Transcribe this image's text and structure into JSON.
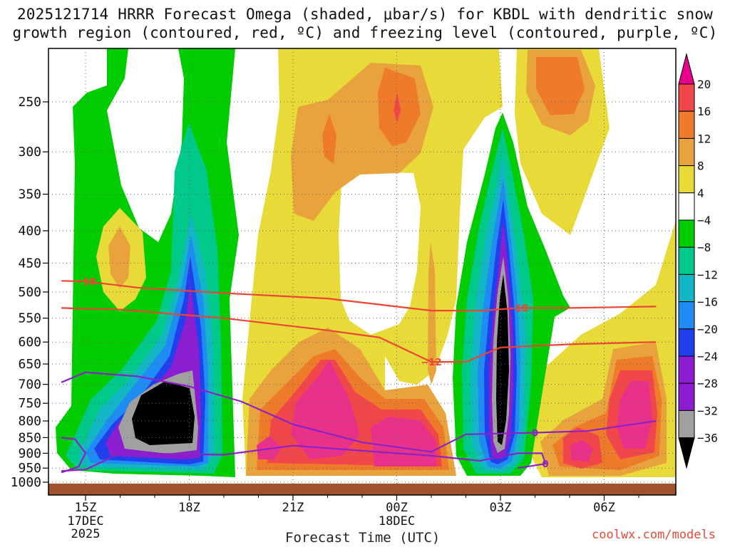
{
  "title_line1": "2025121714 HRRR Forecast Omega (shaded, μbar/s) for KBDL with dendritic snow",
  "title_line2": "growth region (contoured, red, ºC) and freezing level (contoured, purple, ºC)",
  "watermark": "coolwx.com/models",
  "chart_data": {
    "type": "heatmap",
    "xlabel": "Forecast Time (UTC)",
    "ylabel": "",
    "x_ticks": [
      {
        "label": "15Z",
        "sub": [
          "17DEC",
          "2025"
        ],
        "hour": 15
      },
      {
        "label": "18Z",
        "sub": [],
        "hour": 18
      },
      {
        "label": "21Z",
        "sub": [],
        "hour": 21
      },
      {
        "label": "00Z",
        "sub": [
          "18DEC"
        ],
        "hour": 24
      },
      {
        "label": "03Z",
        "sub": [],
        "hour": 27
      },
      {
        "label": "06Z",
        "sub": [],
        "hour": 30
      }
    ],
    "y_ticks": [
      "250",
      "300",
      "350",
      "400",
      "450",
      "500",
      "550",
      "600",
      "650",
      "700",
      "750",
      "800",
      "850",
      "900",
      "950",
      "1000"
    ],
    "y_scale": "pressure (log), inverted",
    "colorbar": {
      "labels": [
        "20",
        "16",
        "12",
        "8",
        "4",
        "−4",
        "−8",
        "−12",
        "−16",
        "−20",
        "−24",
        "−28",
        "−32",
        "−36"
      ],
      "colors": [
        "#e8328a",
        "#f2474a",
        "#ee7b2a",
        "#e8a33c",
        "#e8da38",
        "#ffffff",
        "#00cc00",
        "#00c98a",
        "#12b6c4",
        "#1e8cf2",
        "#2040ee",
        "#8a1ed0",
        "#a0a0a0",
        "#000000"
      ],
      "arrow_top_color": "#e8008a",
      "arrow_bottom_color": "#000000"
    },
    "dendritic_contours": [
      {
        "label": "−18",
        "color": "#ee4433",
        "points": [
          [
            14.3,
            480
          ],
          [
            15.0,
            481
          ],
          [
            16.5,
            492
          ],
          [
            19.0,
            502
          ],
          [
            22.0,
            512
          ],
          [
            25.0,
            535
          ],
          [
            26.5,
            535
          ],
          [
            27.5,
            530
          ],
          [
            29.0,
            530
          ],
          [
            31.5,
            527
          ]
        ]
      },
      {
        "label": "−12",
        "color": "#ee4433",
        "points": [
          [
            14.3,
            530
          ],
          [
            16.0,
            533
          ],
          [
            19.0,
            550
          ],
          [
            22.0,
            575
          ],
          [
            23.5,
            590
          ],
          [
            25.0,
            645
          ],
          [
            26.0,
            645
          ],
          [
            27.0,
            612
          ],
          [
            29.0,
            605
          ],
          [
            31.5,
            600
          ]
        ]
      }
    ],
    "freezing_contours": [
      {
        "label": "0",
        "color": "#8a22c8",
        "points": [
          [
            14.3,
            695
          ],
          [
            15.0,
            670
          ],
          [
            16.5,
            680
          ],
          [
            18.0,
            705
          ],
          [
            19.5,
            745
          ],
          [
            21.0,
            810
          ],
          [
            23.0,
            865
          ],
          [
            25.0,
            895
          ],
          [
            26.0,
            840
          ],
          [
            28.0,
            835
          ],
          [
            29.5,
            830
          ],
          [
            31.5,
            800
          ]
        ]
      },
      {
        "label": "0",
        "color": "#8a22c8",
        "points": [
          [
            14.3,
            965
          ],
          [
            14.8,
            945
          ],
          [
            15.0,
            900
          ],
          [
            14.7,
            855
          ],
          [
            14.3,
            850
          ]
        ]
      },
      {
        "label": "0",
        "color": "#8a22c8",
        "points": [
          [
            14.3,
            960
          ],
          [
            15.0,
            955
          ],
          [
            16.0,
            900
          ],
          [
            19.0,
            905
          ],
          [
            21.0,
            875
          ],
          [
            24.0,
            900
          ],
          [
            25.0,
            908
          ],
          [
            26.4,
            925
          ],
          [
            27.5,
            900
          ],
          [
            28.2,
            900
          ],
          [
            28.3,
            935
          ],
          [
            27.5,
            950
          ]
        ]
      }
    ]
  }
}
